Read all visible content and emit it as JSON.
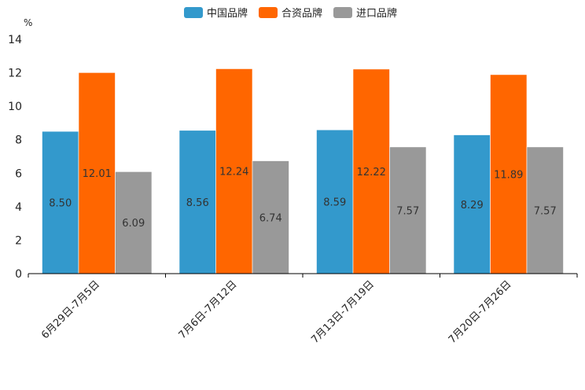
{
  "chart_data": {
    "type": "bar",
    "title": "",
    "ylabel": "%",
    "xlabel": "",
    "ylim": [
      0,
      14
    ],
    "yticks": [
      0,
      2,
      4,
      6,
      8,
      10,
      12,
      14
    ],
    "grid": false,
    "legend_position": "top-center",
    "categories": [
      "6月29日-7月5日",
      "7月6日-7月12日",
      "7月13日-7月19日",
      "7月20日-7月26日"
    ],
    "series": [
      {
        "name": "中国品牌",
        "color": "#3399cc",
        "values": [
          8.5,
          8.56,
          8.59,
          8.29
        ],
        "labels": [
          "8.50",
          "8.56",
          "8.59",
          "8.29"
        ]
      },
      {
        "name": "合资品牌",
        "color": "#ff6600",
        "values": [
          12.01,
          12.24,
          12.22,
          11.89
        ],
        "labels": [
          "12.01",
          "12.24",
          "12.22",
          "11.89"
        ]
      },
      {
        "name": "进口品牌",
        "color": "#999999",
        "values": [
          6.09,
          6.74,
          7.57,
          7.57
        ],
        "labels": [
          "6.09",
          "6.74",
          "7.57",
          "7.57"
        ]
      }
    ]
  }
}
